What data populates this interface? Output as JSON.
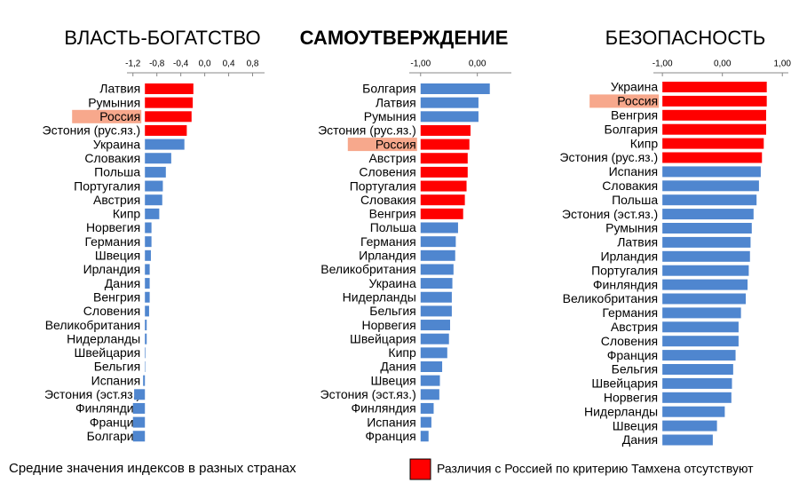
{
  "chart_data": [
    {
      "type": "bar",
      "orientation": "horizontal",
      "title": "ВЛАСТЬ-БОГАТСТВО",
      "title_weight": "normal",
      "title_color": "#000000",
      "categories": [
        "Латвия",
        "Румыния",
        "Россия",
        "Эстония (рус.яз.)",
        "Украина",
        "Словакия",
        "Польша",
        "Португалия",
        "Австрия",
        "Кипр",
        "Норвегия",
        "Германия",
        "Швеция",
        "Ирландия",
        "Дания",
        "Венгрия",
        "Словения",
        "Великобритания",
        "Нидерланды",
        "Швейцария",
        "Бельгия",
        "Испания",
        "Эстония (эст.яз.)",
        "Финляндия",
        "Франция",
        "Болгария"
      ],
      "values": [
        -0.19,
        -0.2,
        -0.22,
        -0.3,
        -0.34,
        -0.56,
        -0.65,
        -0.7,
        -0.71,
        -0.76,
        -0.89,
        -0.89,
        -0.9,
        -0.92,
        -0.92,
        -0.92,
        -0.93,
        -0.97,
        -0.97,
        -0.99,
        -1.0,
        -1.03,
        -1.18,
        -1.2,
        -1.2,
        -1.2
      ],
      "colors": [
        "#ff0000",
        "#ff0000",
        "#ff0000",
        "#ff0000",
        "#4f86cf",
        "#4f86cf",
        "#4f86cf",
        "#4f86cf",
        "#4f86cf",
        "#4f86cf",
        "#4f86cf",
        "#4f86cf",
        "#4f86cf",
        "#4f86cf",
        "#4f86cf",
        "#4f86cf",
        "#4f86cf",
        "#4f86cf",
        "#4f86cf",
        "#4f86cf",
        "#4f86cf",
        "#4f86cf",
        "#4f86cf",
        "#4f86cf",
        "#4f86cf",
        "#4f86cf"
      ],
      "highlight_index": 2,
      "highlight_color": "#f7a88c",
      "base": -1.0,
      "xlim": [
        -1.3,
        1.0
      ],
      "xticks": [
        {
          "value": -1.2,
          "label": "-1,2"
        },
        {
          "value": -0.8,
          "label": "-0,8"
        },
        {
          "value": -0.4,
          "label": "-0,4"
        },
        {
          "value": 0,
          "label": "0,0"
        },
        {
          "value": 0.4,
          "label": "0,4"
        },
        {
          "value": 0.8,
          "label": "0,8"
        }
      ]
    },
    {
      "type": "bar",
      "orientation": "horizontal",
      "title": "САМОУТВЕРЖДЕНИЕ",
      "title_weight": "bold",
      "title_color": "#555555",
      "categories": [
        "Болгария",
        "Латвия",
        "Румыния",
        "Эстония (рус.яз.)",
        "Россия",
        "Австрия",
        "Словения",
        "Португалия",
        "Словакия",
        "Венгрия",
        "Польша",
        "Германия",
        "Ирландия",
        "Великобритания",
        "Украина",
        "Нидерланды",
        "Бельгия",
        "Норвегия",
        "Швейцария",
        "Кипр",
        "Дания",
        "Швеция",
        "Эстония (эст.яз.)",
        "Финляндия",
        "Испания",
        "Франция"
      ],
      "values": [
        0.22,
        0.02,
        0.02,
        -0.12,
        -0.14,
        -0.17,
        -0.17,
        -0.19,
        -0.22,
        -0.25,
        -0.34,
        -0.38,
        -0.39,
        -0.42,
        -0.44,
        -0.45,
        -0.45,
        -0.48,
        -0.5,
        -0.53,
        -0.62,
        -0.66,
        -0.67,
        -0.77,
        -0.81,
        -0.86
      ],
      "colors": [
        "#4f86cf",
        "#4f86cf",
        "#4f86cf",
        "#ff0000",
        "#ff0000",
        "#ff0000",
        "#ff0000",
        "#ff0000",
        "#ff0000",
        "#ff0000",
        "#4f86cf",
        "#4f86cf",
        "#4f86cf",
        "#4f86cf",
        "#4f86cf",
        "#4f86cf",
        "#4f86cf",
        "#4f86cf",
        "#4f86cf",
        "#4f86cf",
        "#4f86cf",
        "#4f86cf",
        "#4f86cf",
        "#4f86cf",
        "#4f86cf",
        "#4f86cf"
      ],
      "highlight_index": 4,
      "highlight_color": "#f7a88c",
      "base": -1.0,
      "xlim": [
        -1.2,
        0.6
      ],
      "xticks": [
        {
          "value": -1.0,
          "label": "-1,00"
        },
        {
          "value": 0,
          "label": "0,00"
        }
      ]
    },
    {
      "type": "bar",
      "orientation": "horizontal",
      "title": "БЕЗОПАСНОСТЬ",
      "title_weight": "normal",
      "title_color": "#000000",
      "categories": [
        "Украина",
        "Россия",
        "Венгрия",
        "Болгария",
        "Кипр",
        "Эстония (рус.яз.)",
        "Испания",
        "Словакия",
        "Польша",
        "Эстония (эст.яз.)",
        "Румыния",
        "Латвия",
        "Ирландия",
        "Португалия",
        "Финляндия",
        "Великобритания",
        "Германия",
        "Австрия",
        "Словения",
        "Франция",
        "Бельгия",
        "Швейцария",
        "Норвегия",
        "Нидерланды",
        "Швеция",
        "Дания"
      ],
      "values": [
        0.74,
        0.74,
        0.73,
        0.73,
        0.69,
        0.66,
        0.64,
        0.61,
        0.57,
        0.52,
        0.49,
        0.47,
        0.46,
        0.44,
        0.42,
        0.39,
        0.31,
        0.27,
        0.27,
        0.22,
        0.18,
        0.16,
        0.15,
        0.04,
        -0.09,
        -0.16
      ],
      "colors": [
        "#ff0000",
        "#ff0000",
        "#ff0000",
        "#ff0000",
        "#ff0000",
        "#ff0000",
        "#4f86cf",
        "#4f86cf",
        "#4f86cf",
        "#4f86cf",
        "#4f86cf",
        "#4f86cf",
        "#4f86cf",
        "#4f86cf",
        "#4f86cf",
        "#4f86cf",
        "#4f86cf",
        "#4f86cf",
        "#4f86cf",
        "#4f86cf",
        "#4f86cf",
        "#4f86cf",
        "#4f86cf",
        "#4f86cf",
        "#4f86cf",
        "#4f86cf"
      ],
      "highlight_index": 1,
      "highlight_color": "#f7a88c",
      "base": -1.0,
      "xlim": [
        -1.15,
        1.1
      ],
      "xticks": [
        {
          "value": -1.0,
          "label": "-1,00"
        },
        {
          "value": 0,
          "label": "0,00"
        },
        {
          "value": 1.0,
          "label": "1,00"
        }
      ]
    }
  ],
  "caption": "Средние значения индексов в разных странах",
  "legend": {
    "label": "Различия с Россией по критерию Тамхена отсутствуют",
    "color": "#ff0000"
  }
}
